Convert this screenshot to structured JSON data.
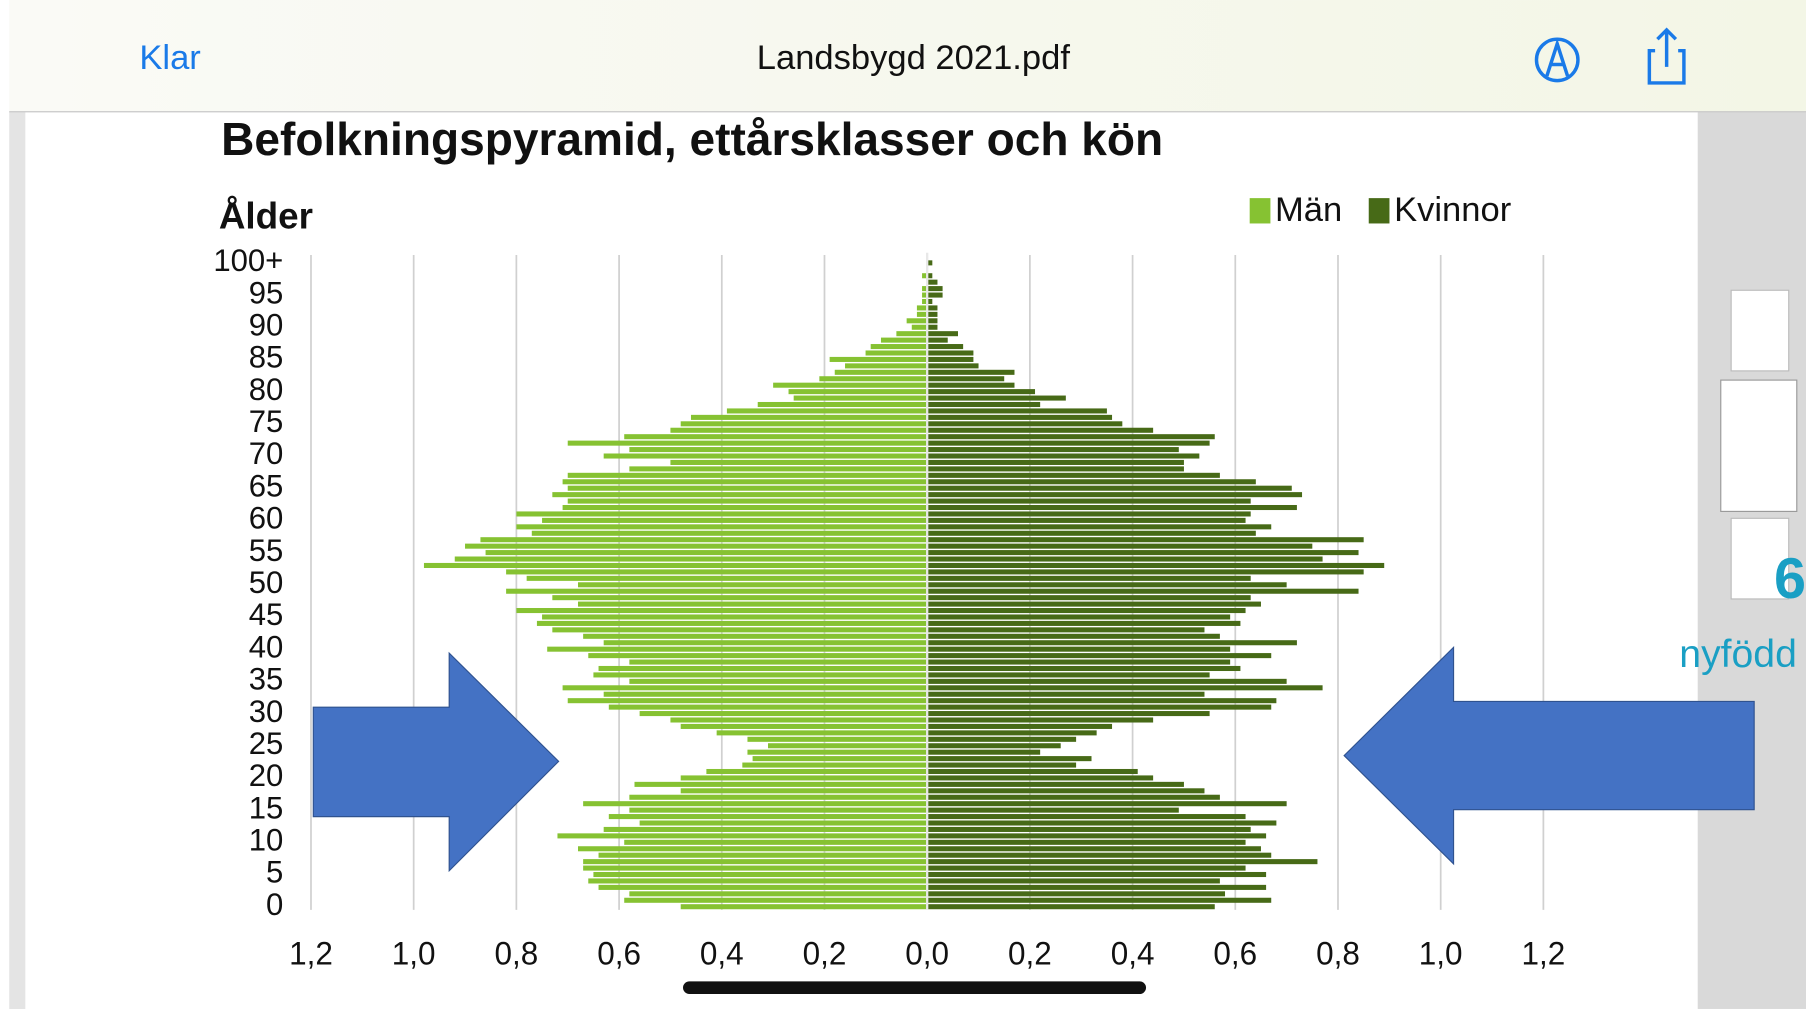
{
  "header": {
    "left_button": "Klar",
    "title": "Landsbygd 2021.pdf"
  },
  "chart_data": {
    "type": "pyramid",
    "title": "Befolkningspyramid, ettårsklasser och kön",
    "y_label": "Ålder",
    "categories": [
      "0",
      null,
      null,
      null,
      null,
      "5",
      null,
      null,
      null,
      null,
      "10",
      null,
      null,
      null,
      null,
      "15",
      null,
      null,
      null,
      null,
      "20",
      null,
      null,
      null,
      null,
      "25",
      null,
      null,
      null,
      null,
      "30",
      null,
      null,
      null,
      null,
      "35",
      null,
      null,
      null,
      null,
      "40",
      null,
      null,
      null,
      null,
      "45",
      null,
      null,
      null,
      null,
      "50",
      null,
      null,
      null,
      null,
      "55",
      null,
      null,
      null,
      null,
      "60",
      null,
      null,
      null,
      null,
      "65",
      null,
      null,
      null,
      null,
      "70",
      null,
      null,
      null,
      null,
      "75",
      null,
      null,
      null,
      null,
      "80",
      null,
      null,
      null,
      null,
      "85",
      null,
      null,
      null,
      null,
      "90",
      null,
      null,
      null,
      null,
      "95",
      null,
      null,
      null,
      null,
      "100+"
    ],
    "series": [
      {
        "name": "Män",
        "color": "#86c232",
        "side": "left",
        "values": [
          0.48,
          0.59,
          0.58,
          0.64,
          0.66,
          0.65,
          0.67,
          0.67,
          0.64,
          0.68,
          0.59,
          0.72,
          0.63,
          0.56,
          0.62,
          0.58,
          0.67,
          0.58,
          0.48,
          0.57,
          0.48,
          0.43,
          0.36,
          0.34,
          0.35,
          0.31,
          0.35,
          0.41,
          0.48,
          0.5,
          0.56,
          0.62,
          0.7,
          0.63,
          0.71,
          0.58,
          0.65,
          0.64,
          0.58,
          0.66,
          0.74,
          0.63,
          0.67,
          0.73,
          0.76,
          0.75,
          0.8,
          0.68,
          0.73,
          0.82,
          0.68,
          0.78,
          0.82,
          0.98,
          0.92,
          0.86,
          0.9,
          0.87,
          0.77,
          0.8,
          0.75,
          0.8,
          0.71,
          0.7,
          0.73,
          0.7,
          0.71,
          0.7,
          0.58,
          0.5,
          0.63,
          0.58,
          0.7,
          0.59,
          0.5,
          0.48,
          0.46,
          0.39,
          0.33,
          0.26,
          0.27,
          0.3,
          0.21,
          0.18,
          0.16,
          0.19,
          0.12,
          0.11,
          0.09,
          0.06,
          0.03,
          0.04,
          0.02,
          0.02,
          0.01,
          0.01,
          0.01,
          0.0,
          0.01,
          0.0,
          0.0
        ]
      },
      {
        "name": "Kvinnor",
        "color": "#476a17",
        "side": "right",
        "values": [
          0.56,
          0.67,
          0.58,
          0.66,
          0.57,
          0.66,
          0.62,
          0.76,
          0.67,
          0.65,
          0.62,
          0.66,
          0.63,
          0.68,
          0.62,
          0.49,
          0.7,
          0.57,
          0.54,
          0.5,
          0.44,
          0.41,
          0.29,
          0.32,
          0.22,
          0.26,
          0.29,
          0.33,
          0.36,
          0.44,
          0.55,
          0.67,
          0.68,
          0.54,
          0.77,
          0.7,
          0.55,
          0.61,
          0.59,
          0.67,
          0.59,
          0.72,
          0.57,
          0.54,
          0.61,
          0.59,
          0.62,
          0.65,
          0.63,
          0.84,
          0.7,
          0.63,
          0.85,
          0.89,
          0.77,
          0.84,
          0.75,
          0.85,
          0.64,
          0.67,
          0.62,
          0.63,
          0.72,
          0.63,
          0.73,
          0.71,
          0.64,
          0.57,
          0.5,
          0.5,
          0.53,
          0.49,
          0.55,
          0.56,
          0.44,
          0.38,
          0.36,
          0.35,
          0.22,
          0.27,
          0.21,
          0.17,
          0.15,
          0.17,
          0.1,
          0.09,
          0.09,
          0.07,
          0.04,
          0.06,
          0.02,
          0.02,
          0.02,
          0.02,
          0.01,
          0.03,
          0.03,
          0.02,
          0.01,
          0.0,
          0.01
        ]
      }
    ],
    "xlim": [
      0,
      1.2
    ],
    "xticks": [
      {
        "value": 0,
        "label": "0,0"
      },
      {
        "value": 0.2,
        "label": "0,2"
      },
      {
        "value": 0.4,
        "label": "0,4"
      },
      {
        "value": 0.6,
        "label": "0,6"
      },
      {
        "value": 0.8,
        "label": "0,8"
      },
      {
        "value": 1.0,
        "label": "1,0"
      },
      {
        "value": 1.2,
        "label": "1,2"
      }
    ],
    "grid": true,
    "legend": "top-right"
  },
  "sidebar": {
    "partial_number": "6",
    "partial_text": "nyfödd"
  }
}
